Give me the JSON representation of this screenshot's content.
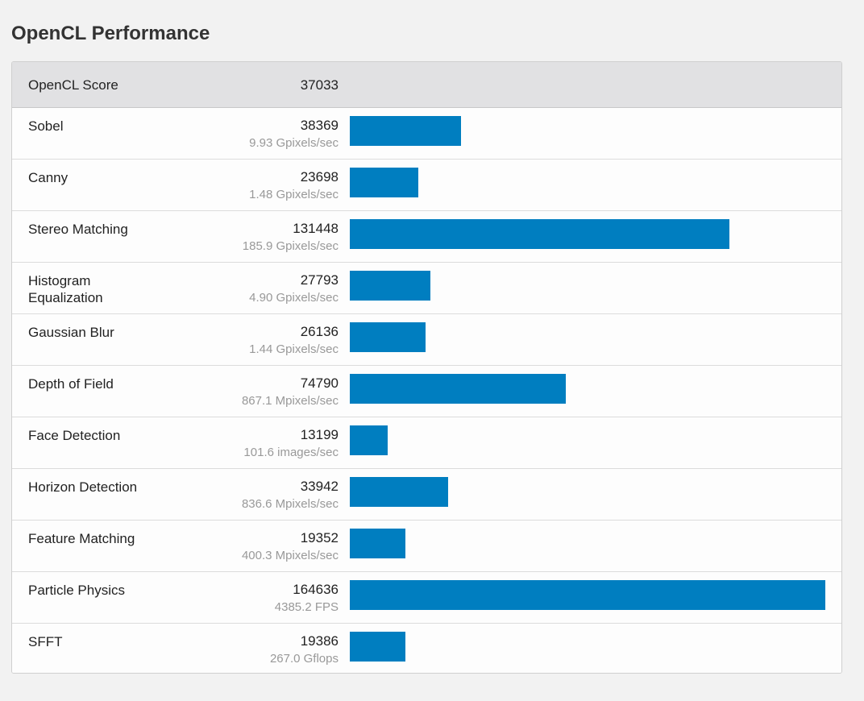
{
  "page": {
    "title": "OpenCL Performance"
  },
  "colors": {
    "bar": "#007ec0",
    "header_bg": "#e1e1e3",
    "rate_text": "#999999"
  },
  "chart_data": {
    "type": "bar",
    "orientation": "horizontal",
    "title": "OpenCL Performance",
    "summary": {
      "label": "OpenCL Score",
      "value": "37033"
    },
    "max_value": 164636,
    "rows": [
      {
        "name": "Sobel",
        "score": 38369,
        "rate": "9.93 Gpixels/sec"
      },
      {
        "name": "Canny",
        "score": 23698,
        "rate": "1.48 Gpixels/sec"
      },
      {
        "name": "Stereo Matching",
        "score": 131448,
        "rate": "185.9 Gpixels/sec"
      },
      {
        "name": "Histogram Equalization",
        "score": 27793,
        "rate": "4.90 Gpixels/sec"
      },
      {
        "name": "Gaussian Blur",
        "score": 26136,
        "rate": "1.44 Gpixels/sec"
      },
      {
        "name": "Depth of Field",
        "score": 74790,
        "rate": "867.1 Mpixels/sec"
      },
      {
        "name": "Face Detection",
        "score": 13199,
        "rate": "101.6 images/sec"
      },
      {
        "name": "Horizon Detection",
        "score": 33942,
        "rate": "836.6 Mpixels/sec"
      },
      {
        "name": "Feature Matching",
        "score": 19352,
        "rate": "400.3 Mpixels/sec"
      },
      {
        "name": "Particle Physics",
        "score": 164636,
        "rate": "4385.2 FPS"
      },
      {
        "name": "SFFT",
        "score": 19386,
        "rate": "267.0 Gflops"
      }
    ]
  }
}
